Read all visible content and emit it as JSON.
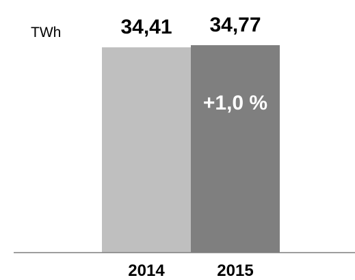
{
  "chart_data": {
    "type": "bar",
    "ylabel": "TWh",
    "categories": [
      "2014",
      "2015"
    ],
    "values": [
      34.41,
      34.77
    ],
    "value_labels": [
      "34,41",
      "34,77"
    ],
    "annotation": "+1,0 %",
    "ylim": [
      0,
      34.77
    ],
    "grid": false,
    "bar_colors": [
      "#bfbfbf",
      "#7f7f7f"
    ],
    "axis_color": "#7f7f7f"
  }
}
